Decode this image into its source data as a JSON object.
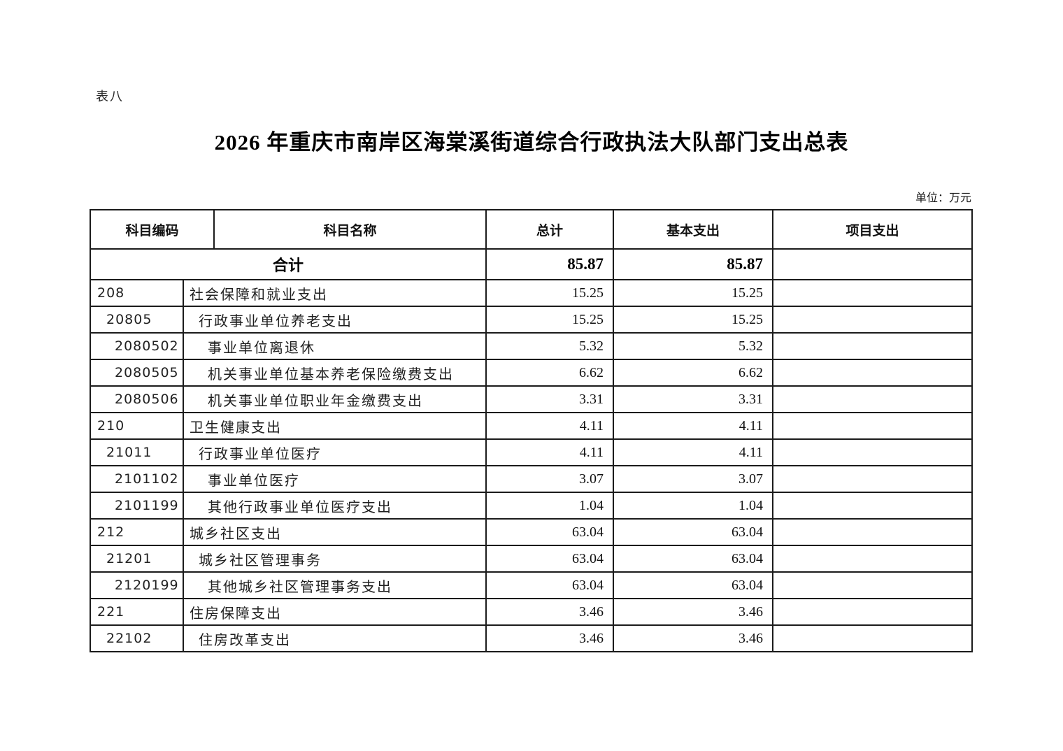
{
  "page": {
    "table_label": "表八",
    "title": "2026 年重庆市南岸区海棠溪街道综合行政执法大队部门支出总表",
    "unit_note": "单位：万元"
  },
  "table": {
    "headers": {
      "code": "科目编码",
      "name": "科目名称",
      "total": "总计",
      "basic": "基本支出",
      "project": "项目支出"
    },
    "total_row": {
      "label": "合计",
      "total": "85.87",
      "basic": "85.87",
      "project": ""
    },
    "rows": [
      {
        "code": "208",
        "name": "社会保障和就业支出",
        "level": 1,
        "total": "15.25",
        "basic": "15.25",
        "project": ""
      },
      {
        "code": "20805",
        "name": "行政事业单位养老支出",
        "level": 2,
        "total": "15.25",
        "basic": "15.25",
        "project": ""
      },
      {
        "code": "2080502",
        "name": "事业单位离退休",
        "level": 3,
        "total": "5.32",
        "basic": "5.32",
        "project": ""
      },
      {
        "code": "2080505",
        "name": "机关事业单位基本养老保险缴费支出",
        "level": 3,
        "total": "6.62",
        "basic": "6.62",
        "project": ""
      },
      {
        "code": "2080506",
        "name": "机关事业单位职业年金缴费支出",
        "level": 3,
        "total": "3.31",
        "basic": "3.31",
        "project": ""
      },
      {
        "code": "210",
        "name": "卫生健康支出",
        "level": 1,
        "total": "4.11",
        "basic": "4.11",
        "project": ""
      },
      {
        "code": "21011",
        "name": "行政事业单位医疗",
        "level": 2,
        "total": "4.11",
        "basic": "4.11",
        "project": ""
      },
      {
        "code": "2101102",
        "name": "事业单位医疗",
        "level": 3,
        "total": "3.07",
        "basic": "3.07",
        "project": ""
      },
      {
        "code": "2101199",
        "name": "其他行政事业单位医疗支出",
        "level": 3,
        "total": "1.04",
        "basic": "1.04",
        "project": ""
      },
      {
        "code": "212",
        "name": "城乡社区支出",
        "level": 1,
        "total": "63.04",
        "basic": "63.04",
        "project": ""
      },
      {
        "code": "21201",
        "name": "城乡社区管理事务",
        "level": 2,
        "total": "63.04",
        "basic": "63.04",
        "project": ""
      },
      {
        "code": "2120199",
        "name": "其他城乡社区管理事务支出",
        "level": 3,
        "total": "63.04",
        "basic": "63.04",
        "project": ""
      },
      {
        "code": "221",
        "name": "住房保障支出",
        "level": 1,
        "total": "3.46",
        "basic": "3.46",
        "project": ""
      },
      {
        "code": "22102",
        "name": "住房改革支出",
        "level": 2,
        "total": "3.46",
        "basic": "3.46",
        "project": ""
      }
    ]
  }
}
